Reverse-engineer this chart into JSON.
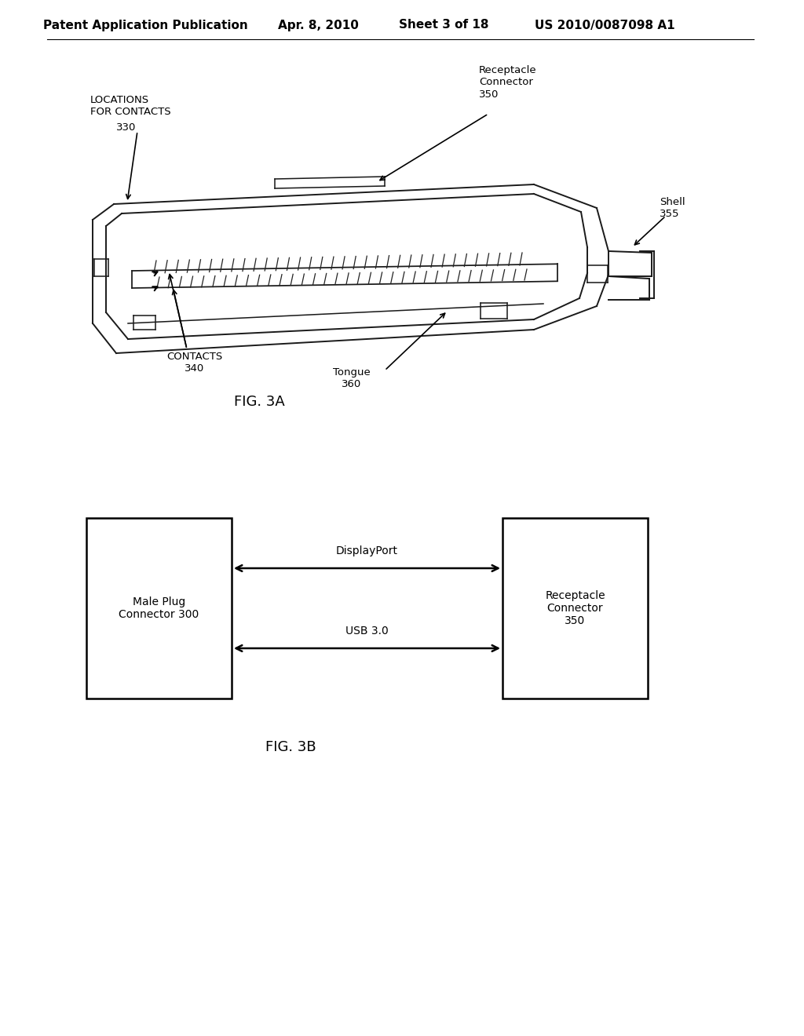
{
  "bg_color": "#ffffff",
  "header_text": "Patent Application Publication",
  "header_date": "Apr. 8, 2010",
  "header_sheet": "Sheet 3 of 18",
  "header_patent": "US 2010/0087098 A1",
  "fig3a_label": "FIG. 3A",
  "fig3b_label": "FIG. 3B",
  "box_left_label": "Male Plug\nConnector 300",
  "box_right_label": "Receptacle\nConnector\n350",
  "arrow1_label": "DisplayPort",
  "arrow2_label": "USB 3.0",
  "font_color": "#000000",
  "line_color": "#000000",
  "header_font_size": 11,
  "label_font_size": 10,
  "fig_label_font_size": 13,
  "connector_color": "#1a1a1a",
  "connector_lw": 1.4
}
